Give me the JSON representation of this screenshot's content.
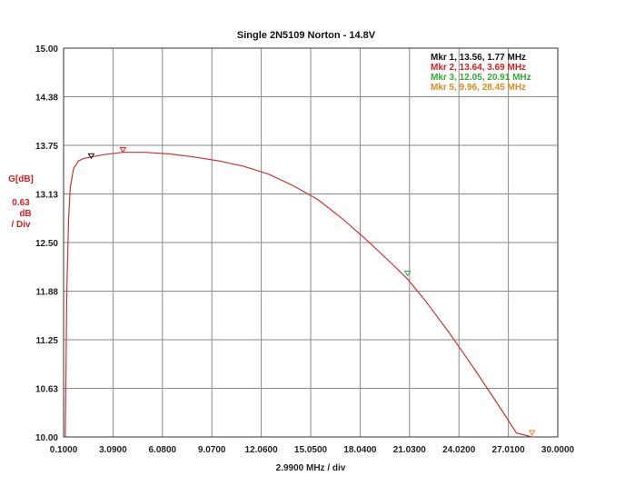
{
  "chart_data": {
    "type": "line",
    "title": "Single 2N5109 Norton - 14.8V",
    "xlabel": "2.9900 MHz / div",
    "ylabel": {
      "line1": "G[dB]",
      "line2": "0.63",
      "line3": "dB",
      "line4": "/ Div"
    },
    "xlim": [
      0.1,
      30.0
    ],
    "ylim": [
      10.0,
      15.0
    ],
    "x_ticks": [
      "0.1000",
      "3.0900",
      "6.0800",
      "9.0700",
      "12.0600",
      "15.0500",
      "18.0400",
      "21.0300",
      "24.0200",
      "27.0100",
      "30.0000"
    ],
    "y_ticks": [
      "15.00",
      "14.38",
      "13.75",
      "13.13",
      "12.50",
      "11.88",
      "11.25",
      "10.63",
      "10.00"
    ],
    "grid": true,
    "legend_position": "top-right",
    "series": [
      {
        "color": "#cc3333",
        "x": [
          0.2,
          0.25,
          0.3,
          0.4,
          0.5,
          0.7,
          1.0,
          1.3,
          1.77,
          2.5,
          3.69,
          5.0,
          6.5,
          8.0,
          9.5,
          11.0,
          12.5,
          14.0,
          15.5,
          17.0,
          18.5,
          20.0,
          20.91,
          22.0,
          23.5,
          25.0,
          26.5,
          27.5,
          28.45
        ],
        "y": [
          10.0,
          10.95,
          11.9,
          12.8,
          13.2,
          13.45,
          13.55,
          13.58,
          13.6,
          13.63,
          13.66,
          13.66,
          13.64,
          13.6,
          13.55,
          13.48,
          13.38,
          13.23,
          13.05,
          12.8,
          12.52,
          12.22,
          12.03,
          11.75,
          11.32,
          10.86,
          10.38,
          10.05,
          10.0
        ]
      }
    ],
    "markers": [
      {
        "label": "Mkr 1, 13.56, 1.77 MHz",
        "x": 1.77,
        "y": 13.56,
        "color": "#111111"
      },
      {
        "label": "Mkr 2, 13.64, 3.69 MHz",
        "x": 3.69,
        "y": 13.64,
        "color": "#cc2222"
      },
      {
        "label": "Mkr 3, 12.05, 20.91 MHz",
        "x": 20.91,
        "y": 12.05,
        "color": "#33aa33"
      },
      {
        "label": "Mkr 5, 9.96, 28.45 MHz",
        "x": 28.45,
        "y": 9.96,
        "color": "#dd8822"
      }
    ]
  }
}
